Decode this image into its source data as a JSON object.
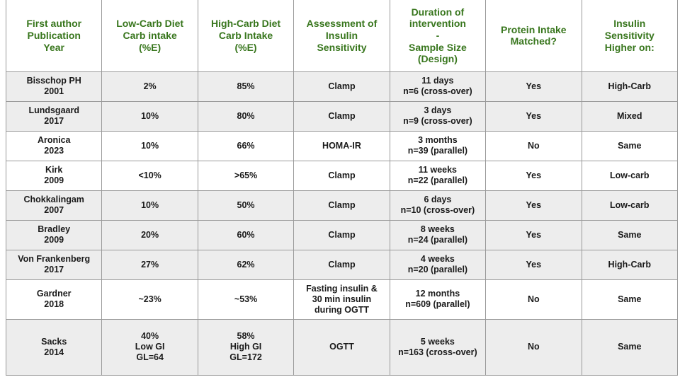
{
  "page": {
    "background_color": "#ffffff"
  },
  "table": {
    "header_text_color": "#38761d",
    "body_text_color": "#1a1a1a",
    "row_shade_color": "#ededed",
    "border_color": "#9a9a9a",
    "columns": [
      "First author\nPublication\nYear",
      "Low-Carb Diet\nCarb intake\n(%E)",
      "High-Carb Diet\nCarb Intake\n(%E)",
      "Assessment of\nInsulin\nSensitivity",
      "Duration of\nintervention\n-\nSample Size\n(Design)",
      "Protein Intake\nMatched?",
      "Insulin\nSensitivity\nHigher on:"
    ],
    "rows": [
      {
        "cells": [
          "Bisschop PH\n2001",
          "2%",
          "85%",
          "Clamp",
          "11 days\nn=6 (cross-over)",
          "Yes",
          "High-Carb"
        ]
      },
      {
        "cells": [
          "Lundsgaard\n2017",
          "10%",
          "80%",
          "Clamp",
          "3 days\nn=9 (cross-over)",
          "Yes",
          "Mixed"
        ]
      },
      {
        "cells": [
          "Aronica\n2023",
          "10%",
          "66%",
          "HOMA-IR",
          "3 months\nn=39 (parallel)",
          "No",
          "Same"
        ]
      },
      {
        "cells": [
          "Kirk\n2009",
          "<10%",
          ">65%",
          "Clamp",
          "11 weeks\nn=22 (parallel)",
          "Yes",
          "Low-carb"
        ]
      },
      {
        "cells": [
          "Chokkalingam\n2007",
          "10%",
          "50%",
          "Clamp",
          "6 days\nn=10 (cross-over)",
          "Yes",
          "Low-carb"
        ]
      },
      {
        "cells": [
          "Bradley\n2009",
          "20%",
          "60%",
          "Clamp",
          "8 weeks\nn=24 (parallel)",
          "Yes",
          "Same"
        ]
      },
      {
        "cells": [
          "Von Frankenberg\n2017",
          "27%",
          "62%",
          "Clamp",
          "4 weeks\nn=20 (parallel)",
          "Yes",
          "High-Carb"
        ]
      },
      {
        "cells": [
          "Gardner\n2018",
          "~23%",
          "~53%",
          "Fasting insulin &\n30 min insulin\nduring OGTT",
          "12 months\nn=609 (parallel)",
          "No",
          "Same"
        ]
      },
      {
        "cells": [
          "Sacks\n2014",
          "40%\nLow GI\nGL=64",
          "58%\nHigh GI\nGL=172",
          "OGTT",
          "5 weeks\nn=163 (cross-over)",
          "No",
          "Same"
        ]
      }
    ]
  }
}
